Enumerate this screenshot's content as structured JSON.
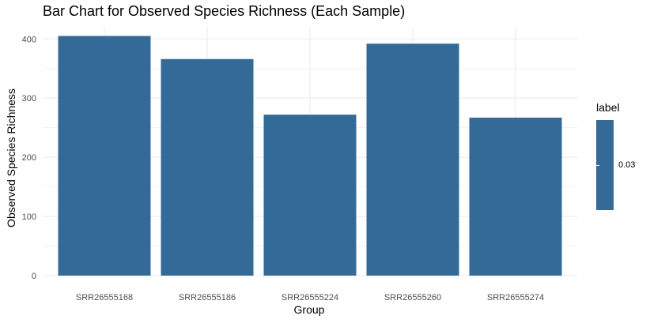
{
  "colors": {
    "bar": "#346A98",
    "grid": "#EBEBEB",
    "axis_text": "#4D4D4D"
  },
  "chart_data": {
    "type": "bar",
    "title": "Bar Chart for Observed Species Richness (Each Sample)",
    "xlabel": "Group",
    "ylabel": "Observed Species Richness",
    "categories": [
      "SRR26555168",
      "SRR26555186",
      "SRR26555224",
      "SRR26555260",
      "SRR26555274"
    ],
    "values": [
      405,
      366,
      272,
      392,
      267
    ],
    "ylim": [
      0,
      420
    ],
    "yticks": [
      0,
      100,
      200,
      300,
      400
    ],
    "grid": true,
    "legend": {
      "title": "label",
      "labels": [
        "0.03"
      ],
      "placement": "right"
    }
  }
}
